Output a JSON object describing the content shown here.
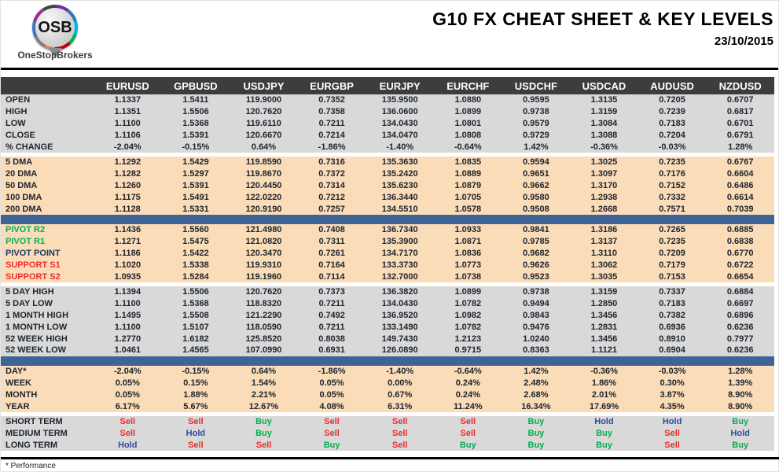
{
  "brand": {
    "logo_text": "OSB",
    "logo_sub": "OneStopBrokers"
  },
  "header": {
    "title": "G10 FX CHEAT SHEET & KEY LEVELS",
    "date": "23/10/2015"
  },
  "footer": {
    "note": "* Performance"
  },
  "colors": {
    "header_bg": "#3d3d3d",
    "gray_section_bg": "#d9d9d9",
    "peach_section_bg": "#fadcb8",
    "blue_divider": "#3e6497",
    "buy_green": "#00b050",
    "sell_red": "#ee2c2c",
    "hold_blue": "#2e4b9e"
  },
  "table": {
    "pairs": [
      "EURUSD",
      "GPBUSD",
      "USDJPY",
      "EURGBP",
      "EURJPY",
      "EURCHF",
      "USDCHF",
      "USDCAD",
      "AUDUSD",
      "NZDUSD"
    ],
    "sections": [
      {
        "id": "ohlc",
        "bg": "gray",
        "divider_before": "none",
        "rows": [
          {
            "label": "OPEN",
            "values": [
              "1.1337",
              "1.5411",
              "119.9000",
              "0.7352",
              "135.9500",
              "1.0880",
              "0.9595",
              "1.3135",
              "0.7205",
              "0.6707"
            ]
          },
          {
            "label": "HIGH",
            "values": [
              "1.1351",
              "1.5506",
              "120.7620",
              "0.7358",
              "136.0600",
              "1.0899",
              "0.9738",
              "1.3159",
              "0.7239",
              "0.6817"
            ]
          },
          {
            "label": "LOW",
            "values": [
              "1.1100",
              "1.5368",
              "119.6110",
              "0.7211",
              "134.0430",
              "1.0801",
              "0.9579",
              "1.3084",
              "0.7183",
              "0.6701"
            ]
          },
          {
            "label": "CLOSE",
            "values": [
              "1.1106",
              "1.5391",
              "120.6670",
              "0.7214",
              "134.0470",
              "1.0808",
              "0.9729",
              "1.3088",
              "0.7204",
              "0.6791"
            ]
          },
          {
            "label": "% CHANGE",
            "values": [
              "-2.04%",
              "-0.15%",
              "0.64%",
              "-1.86%",
              "-1.40%",
              "-0.64%",
              "1.42%",
              "-0.36%",
              "-0.03%",
              "1.28%"
            ]
          }
        ]
      },
      {
        "id": "dma",
        "bg": "peach",
        "divider_before": "gap",
        "rows": [
          {
            "label": "5 DMA",
            "values": [
              "1.1292",
              "1.5429",
              "119.8590",
              "0.7316",
              "135.3630",
              "1.0835",
              "0.9594",
              "1.3025",
              "0.7235",
              "0.6767"
            ]
          },
          {
            "label": "20 DMA",
            "values": [
              "1.1282",
              "1.5297",
              "119.8670",
              "0.7372",
              "135.2420",
              "1.0889",
              "0.9651",
              "1.3097",
              "0.7176",
              "0.6604"
            ]
          },
          {
            "label": "50 DMA",
            "values": [
              "1.1260",
              "1.5391",
              "120.4450",
              "0.7314",
              "135.6230",
              "1.0879",
              "0.9662",
              "1.3170",
              "0.7152",
              "0.6486"
            ]
          },
          {
            "label": "100 DMA",
            "values": [
              "1.1175",
              "1.5491",
              "122.0220",
              "0.7212",
              "136.3440",
              "1.0705",
              "0.9580",
              "1.2938",
              "0.7332",
              "0.6614"
            ]
          },
          {
            "label": "200 DMA",
            "values": [
              "1.1128",
              "1.5331",
              "120.9190",
              "0.7257",
              "134.5510",
              "1.0578",
              "0.9508",
              "1.2668",
              "0.7571",
              "0.7039"
            ]
          }
        ]
      },
      {
        "id": "pivots",
        "bg": "peach",
        "divider_before": "blue",
        "rows": [
          {
            "label": "PIVOT R2",
            "label_color": "green",
            "values": [
              "1.1436",
              "1.5560",
              "121.4980",
              "0.7408",
              "136.7340",
              "1.0933",
              "0.9841",
              "1.3186",
              "0.7265",
              "0.6885"
            ]
          },
          {
            "label": "PIVOT R1",
            "label_color": "green",
            "values": [
              "1.1271",
              "1.5475",
              "121.0820",
              "0.7311",
              "135.3900",
              "1.0871",
              "0.9785",
              "1.3137",
              "0.7235",
              "0.6838"
            ]
          },
          {
            "label": "PIVOT POINT",
            "label_color": "navy",
            "values": [
              "1.1186",
              "1.5422",
              "120.3470",
              "0.7261",
              "134.7170",
              "1.0836",
              "0.9682",
              "1.3110",
              "0.7209",
              "0.6770"
            ]
          },
          {
            "label": "SUPPORT S1",
            "label_color": "red",
            "values": [
              "1.1020",
              "1.5338",
              "119.9310",
              "0.7164",
              "133.3730",
              "1.0773",
              "0.9626",
              "1.3062",
              "0.7179",
              "0.6722"
            ]
          },
          {
            "label": "SUPPORT S2",
            "label_color": "red",
            "values": [
              "1.0935",
              "1.5284",
              "119.1960",
              "0.7114",
              "132.7000",
              "1.0738",
              "0.9523",
              "1.3035",
              "0.7153",
              "0.6654"
            ]
          }
        ]
      },
      {
        "id": "ranges",
        "bg": "gray",
        "divider_before": "gap",
        "rows": [
          {
            "label": "5 DAY HIGH",
            "values": [
              "1.1394",
              "1.5506",
              "120.7620",
              "0.7373",
              "136.3820",
              "1.0899",
              "0.9738",
              "1.3159",
              "0.7337",
              "0.6884"
            ]
          },
          {
            "label": "5 DAY LOW",
            "values": [
              "1.1100",
              "1.5368",
              "118.8320",
              "0.7211",
              "134.0430",
              "1.0782",
              "0.9494",
              "1.2850",
              "0.7183",
              "0.6697"
            ]
          },
          {
            "label": "1 MONTH HIGH",
            "values": [
              "1.1495",
              "1.5508",
              "121.2290",
              "0.7492",
              "136.9520",
              "1.0982",
              "0.9843",
              "1.3456",
              "0.7382",
              "0.6896"
            ]
          },
          {
            "label": "1 MONTH LOW",
            "values": [
              "1.1100",
              "1.5107",
              "118.0590",
              "0.7211",
              "133.1490",
              "1.0782",
              "0.9476",
              "1.2831",
              "0.6936",
              "0.6236"
            ]
          },
          {
            "label": "52 WEEK HIGH",
            "values": [
              "1.2770",
              "1.6182",
              "125.8520",
              "0.8038",
              "149.7430",
              "1.2123",
              "1.0240",
              "1.3456",
              "0.8910",
              "0.7977"
            ]
          },
          {
            "label": "52 WEEK LOW",
            "values": [
              "1.0461",
              "1.4565",
              "107.0990",
              "0.6931",
              "126.0890",
              "0.9715",
              "0.8363",
              "1.1121",
              "0.6904",
              "0.6236"
            ]
          }
        ]
      },
      {
        "id": "performance",
        "bg": "peach",
        "divider_before": "blue",
        "rows": [
          {
            "label": "DAY*",
            "values": [
              "-2.04%",
              "-0.15%",
              "0.64%",
              "-1.86%",
              "-1.40%",
              "-0.64%",
              "1.42%",
              "-0.36%",
              "-0.03%",
              "1.28%"
            ]
          },
          {
            "label": "WEEK",
            "values": [
              "0.05%",
              "0.15%",
              "1.54%",
              "0.05%",
              "0.00%",
              "0.24%",
              "2.48%",
              "1.86%",
              "0.30%",
              "1.39%"
            ]
          },
          {
            "label": "MONTH",
            "values": [
              "0.05%",
              "1.88%",
              "2.21%",
              "0.05%",
              "0.67%",
              "0.24%",
              "2.68%",
              "2.01%",
              "3.87%",
              "8.90%"
            ]
          },
          {
            "label": "YEAR",
            "values": [
              "6.17%",
              "5.67%",
              "12.67%",
              "4.08%",
              "6.31%",
              "11.24%",
              "16.34%",
              "17.69%",
              "4.35%",
              "8.90%"
            ]
          }
        ]
      },
      {
        "id": "signals",
        "bg": "gray",
        "divider_before": "gap",
        "signal": true,
        "rows": [
          {
            "label": "SHORT TERM",
            "values": [
              "Sell",
              "Sell",
              "Buy",
              "Sell",
              "Sell",
              "Sell",
              "Buy",
              "Hold",
              "Hold",
              "Buy"
            ]
          },
          {
            "label": "MEDIUM TERM",
            "values": [
              "Sell",
              "Hold",
              "Buy",
              "Sell",
              "Sell",
              "Sell",
              "Buy",
              "Buy",
              "Sell",
              "Hold"
            ]
          },
          {
            "label": "LONG TERM",
            "values": [
              "Hold",
              "Sell",
              "Sell",
              "Buy",
              "Sell",
              "Buy",
              "Buy",
              "Buy",
              "Sell",
              "Buy"
            ]
          }
        ]
      }
    ]
  }
}
